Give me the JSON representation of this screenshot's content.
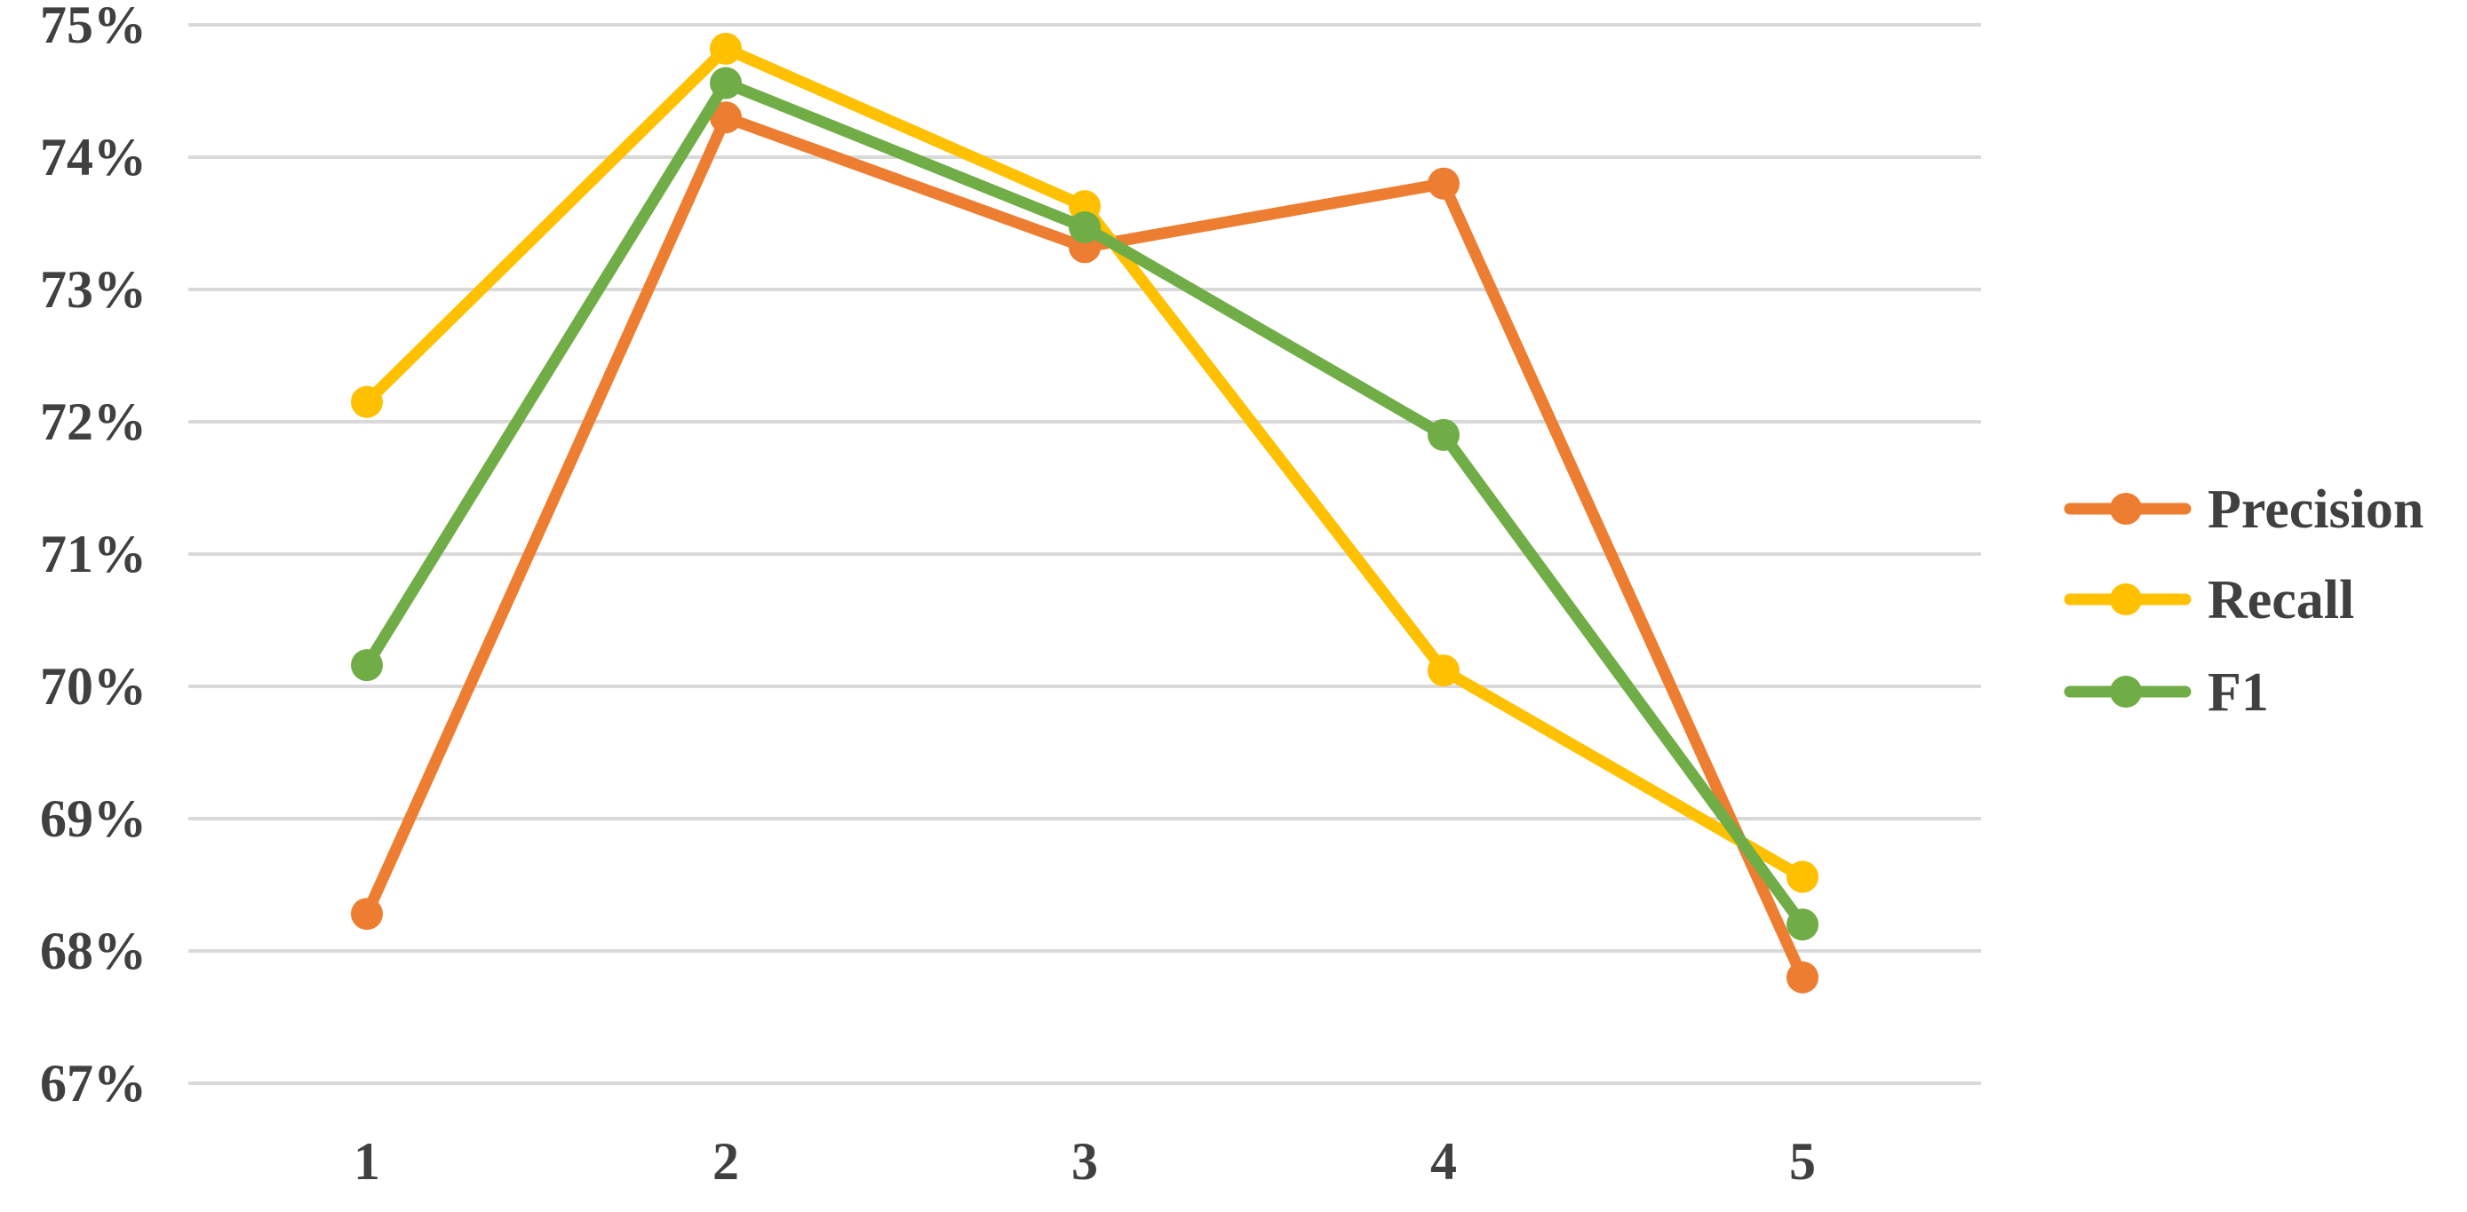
{
  "chart_data": {
    "type": "line",
    "title": "",
    "xlabel": "",
    "ylabel": "",
    "x": [
      "1",
      "2",
      "3",
      "4",
      "5"
    ],
    "ylim": [
      0.67,
      0.75
    ],
    "yticks": [
      0.67,
      0.68,
      0.69,
      0.7,
      0.71,
      0.72,
      0.73,
      0.74,
      0.75
    ],
    "ytick_labels": [
      "67%",
      "68%",
      "69%",
      "70%",
      "71%",
      "72%",
      "73%",
      "74%",
      "75%"
    ],
    "grid": true,
    "legend_position": "right",
    "series": [
      {
        "name": "Precision",
        "color": "#ED7D31",
        "values": [
          0.6828,
          0.743,
          0.7332,
          0.738,
          0.678
        ]
      },
      {
        "name": "Recall",
        "color": "#FFC000",
        "values": [
          0.7215,
          0.7482,
          0.7363,
          0.7012,
          0.6856
        ]
      },
      {
        "name": "F1",
        "color": "#70AD47",
        "values": [
          0.7016,
          0.7456,
          0.7347,
          0.719,
          0.682
        ]
      }
    ]
  }
}
